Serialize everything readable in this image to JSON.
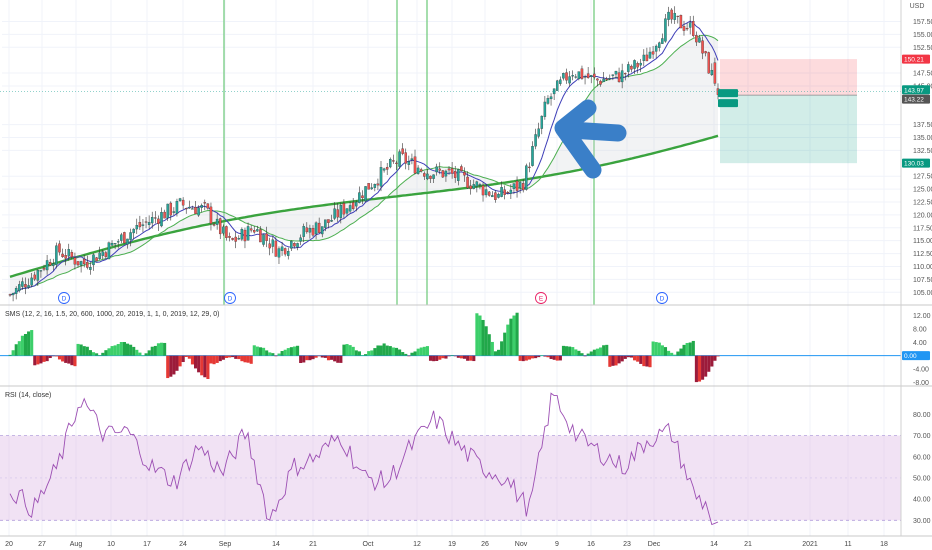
{
  "symbol_currency": "USD",
  "price_axis": {
    "labels": [
      "157.50",
      "155.00",
      "152.50",
      "147.50",
      "145.00",
      "137.50",
      "135.00",
      "132.50",
      "127.50",
      "125.00",
      "122.50",
      "120.00",
      "117.50",
      "115.00",
      "112.50",
      "110.00",
      "107.50",
      "105.00"
    ],
    "range": [
      103.5,
      160.5
    ]
  },
  "price_badges": [
    {
      "value": 150.21,
      "label": "150.21",
      "color": "#f23645"
    },
    {
      "value": 143.97,
      "label": "143.97",
      "color": "#089981"
    },
    {
      "value": 143.22,
      "label": "143.22",
      "color": "#555555"
    },
    {
      "value": 130.03,
      "label": "130.03",
      "color": "#089981"
    }
  ],
  "position": {
    "entry": 143.22,
    "stop": 150.21,
    "target": 130.03
  },
  "event_markers": [
    {
      "label": "D",
      "type": "dividend",
      "color": "#2962ff"
    },
    {
      "label": "D",
      "type": "dividend",
      "color": "#2962ff"
    },
    {
      "label": "E",
      "type": "earnings",
      "color": "#e91e63"
    },
    {
      "label": "D",
      "type": "dividend",
      "color": "#2962ff"
    }
  ],
  "sms_indicator": {
    "title": "SMS (12, 2, 16, 1.5, 20, 600, 1000, 20, 2019, 1, 1, 0, 2019, 12, 29, 0)",
    "axis_labels": [
      "12.00",
      "8.00",
      "4.00",
      "0.00",
      "-4.00",
      "-8.00"
    ],
    "range": [
      -8.5,
      14
    ],
    "zero_badge": "0.00"
  },
  "rsi_indicator": {
    "title": "RSI (14, close)",
    "axis_labels": [
      "80.00",
      "70.00",
      "60.00",
      "50.00",
      "40.00",
      "30.00"
    ],
    "range": [
      24,
      92
    ],
    "band": [
      30,
      70
    ]
  },
  "x_axis": {
    "labels": [
      "20",
      "27",
      "Aug",
      "10",
      "17",
      "24",
      "Sep",
      "14",
      "21",
      "Oct",
      "12",
      "19",
      "26",
      "Nov",
      "9",
      "16",
      "23",
      "Dec",
      "14",
      "21",
      "2021",
      "11",
      "18"
    ]
  },
  "chart_data": {
    "type": "candlestick",
    "y_axis_unit": "USD",
    "series": [
      {
        "name": "price",
        "type": "candlestick",
        "closes_weekly_approx": [
          104.5,
          108.5,
          113.0,
          110.5,
          113.5,
          117.0,
          119.5,
          122.0,
          121.0,
          114.5,
          117.5,
          113.0,
          116.5,
          118.5,
          122.5,
          127.0,
          131.0,
          128.5,
          128.0,
          126.0,
          123.5,
          126.0,
          142.0,
          148.0,
          146.0,
          147.0,
          150.0,
          158.0,
          156.0,
          144.0
        ]
      },
      {
        "name": "SMS histogram",
        "type": "histogram",
        "peaks": [
          7.5,
          -3.0,
          3.5,
          4.0,
          -7.0,
          -2.5,
          3.0,
          -2.0,
          3.5,
          3.0,
          -1.5,
          13.0,
          -1.5,
          3.0,
          -3.5,
          4.5,
          -8.0
        ]
      },
      {
        "name": "RSI",
        "type": "line",
        "values_weekly_approx": [
          45,
          35,
          55,
          88,
          70,
          72,
          55,
          48,
          65,
          52,
          72,
          30,
          55,
          60,
          70,
          50,
          48,
          65,
          78,
          65,
          55,
          50,
          35,
          90,
          70,
          62,
          55,
          68,
          72,
          42,
          32
        ]
      }
    ]
  }
}
